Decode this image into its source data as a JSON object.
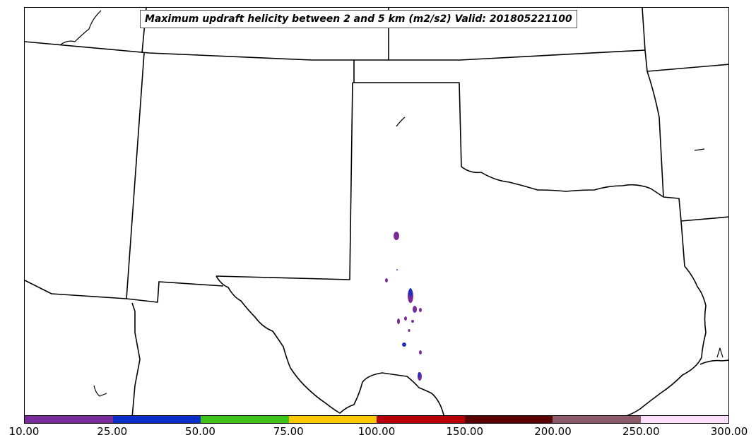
{
  "title": "Maximum updraft helicity between 2 and 5 km (m2/s2) Valid: 201805221100",
  "colorbar": {
    "tick_labels": [
      "10.00",
      "25.00",
      "50.00",
      "75.00",
      "100.00",
      "150.00",
      "200.00",
      "250.00",
      "300.00"
    ],
    "colors": [
      "#7a2b9a",
      "#0a2fc8",
      "#3cc41a",
      "#ffc800",
      "#b40000",
      "#5a0000",
      "#8a5a6a",
      "#ffe0ff"
    ]
  },
  "accent_colors": {
    "purple": "#7a2b9a",
    "blue": "#1e2fc8",
    "border": "#000000"
  }
}
